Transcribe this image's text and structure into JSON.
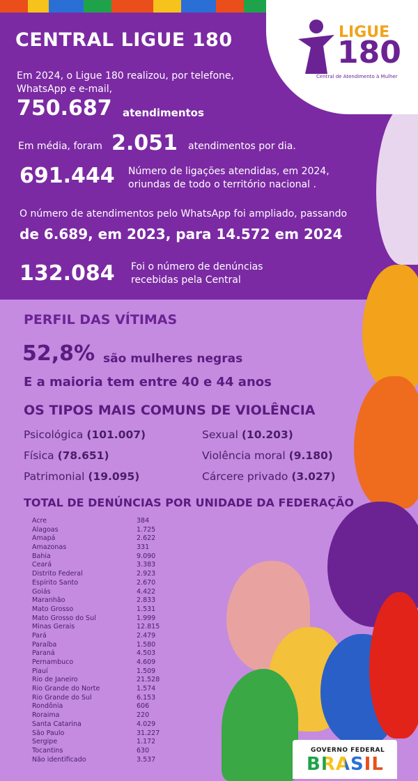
{
  "header": {
    "title": "CENTRAL LIGUE 180"
  },
  "logo": {
    "word": "LIGUE",
    "number": "180",
    "subtitle": "Central de Atendimento à Mulher"
  },
  "stats": {
    "intro": "Em 2024, o Ligue 180 realizou, por telefone,",
    "intro2": "WhatsApp e e-mail,",
    "total_value": "750.687",
    "total_label": "atendimentos",
    "avg_prefix": "Em média, foram",
    "avg_value": "2.051",
    "avg_suffix": "atendimentos por dia.",
    "calls_value": "691.444",
    "calls_label1": "Número de ligações atendidas, em 2024,",
    "calls_label2": "oriundas de todo o território nacional .",
    "whatsapp_text": "O número de atendimentos pelo WhatsApp foi ampliado, passando",
    "whatsapp_values": "de 6.689, em 2023, para 14.572 em 2024",
    "complaints_value": "132.084",
    "complaints_label1": "Foi o número de denúncias",
    "complaints_label2": "recebidas pela Central"
  },
  "profile": {
    "title": "PERFIL DAS VÍTIMAS",
    "percent": "52,8%",
    "percent_label": "são mulheres negras",
    "age_text": "E a maioria tem entre 40 e 44 anos"
  },
  "violence": {
    "title": "OS TIPOS MAIS COMUNS DE VIOLÊNCIA",
    "items": [
      {
        "name": "Psicológica",
        "value": "(101.007)"
      },
      {
        "name": "Sexual",
        "value": "(10.203)"
      },
      {
        "name": "Física",
        "value": "(78.651)"
      },
      {
        "name": "Violência moral",
        "value": "(9.180)"
      },
      {
        "name": "Patrimonial",
        "value": "(19.095)"
      },
      {
        "name": "Cárcere privado",
        "value": "(3.027)"
      }
    ]
  },
  "states": {
    "title": "TOTAL DE DENÚNCIAS POR UNIDADE DA FEDERAÇÃO",
    "rows": [
      {
        "name": "Acre",
        "value": "384"
      },
      {
        "name": "Alagoas",
        "value": "1.725"
      },
      {
        "name": "Amapá",
        "value": "2.622"
      },
      {
        "name": "Amazonas",
        "value": "331"
      },
      {
        "name": "Bahia",
        "value": "9.090"
      },
      {
        "name": "Ceará",
        "value": "3.383"
      },
      {
        "name": "Distrito Federal",
        "value": "2.923"
      },
      {
        "name": "Espírito Santo",
        "value": "2.670"
      },
      {
        "name": "Goiás",
        "value": "4.422"
      },
      {
        "name": "Maranhão",
        "value": "2.833"
      },
      {
        "name": "Mato Grosso",
        "value": "1.531"
      },
      {
        "name": "Mato Grosso do Sul",
        "value": "1.999"
      },
      {
        "name": "Minas Gerais",
        "value": "12.815"
      },
      {
        "name": "Pará",
        "value": "2.479"
      },
      {
        "name": "Paraíba",
        "value": "1.580"
      },
      {
        "name": "Paraná",
        "value": "4.503"
      },
      {
        "name": "Pernambuco",
        "value": "4.609"
      },
      {
        "name": "Piauí",
        "value": "1.509"
      },
      {
        "name": "Rio de Janeiro",
        "value": "21.528"
      },
      {
        "name": "Rio Grande do Norte",
        "value": "1.574"
      },
      {
        "name": "Rio Grande do Sul",
        "value": "6.153"
      },
      {
        "name": "Rondônia",
        "value": "606"
      },
      {
        "name": "Roraima",
        "value": "220"
      },
      {
        "name": "Santa Catarina",
        "value": "4.029"
      },
      {
        "name": "São Paulo",
        "value": "31.227"
      },
      {
        "name": "Sergipe",
        "value": "1.172"
      },
      {
        "name": "Tocantins",
        "value": "630"
      },
      {
        "name": "Não identificado",
        "value": "3.537"
      }
    ]
  },
  "footer": {
    "gov_label": "GOVERNO FEDERAL",
    "brasil": "BRASIL"
  },
  "colors": {
    "dark_purple": "#7b2aa3",
    "lilac": "#c48be0",
    "text_purple": "#6b2394",
    "logo_orange": "#f2a31b"
  }
}
